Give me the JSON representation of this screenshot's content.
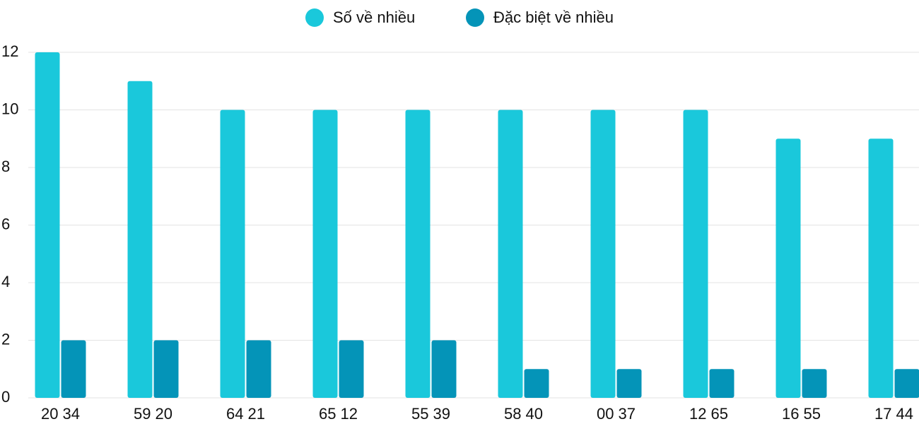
{
  "chart_data": {
    "type": "bar",
    "categories": [
      "20 34",
      "59 20",
      "64 21",
      "65 12",
      "55 39",
      "58 40",
      "00 37",
      "12 65",
      "16 55",
      "17 44"
    ],
    "series": [
      {
        "name": "Số về nhiều",
        "color": "#1ac8db",
        "values": [
          12,
          11,
          10,
          10,
          10,
          10,
          10,
          10,
          9,
          9
        ]
      },
      {
        "name": "Đặc biệt về nhiều",
        "color": "#0494b8",
        "values": [
          2,
          2,
          2,
          2,
          2,
          1,
          1,
          1,
          1,
          1
        ]
      }
    ],
    "ylim": [
      0,
      12
    ],
    "yticks": [
      0,
      2,
      4,
      6,
      8,
      10,
      12
    ],
    "grid": true,
    "legend": "top"
  }
}
